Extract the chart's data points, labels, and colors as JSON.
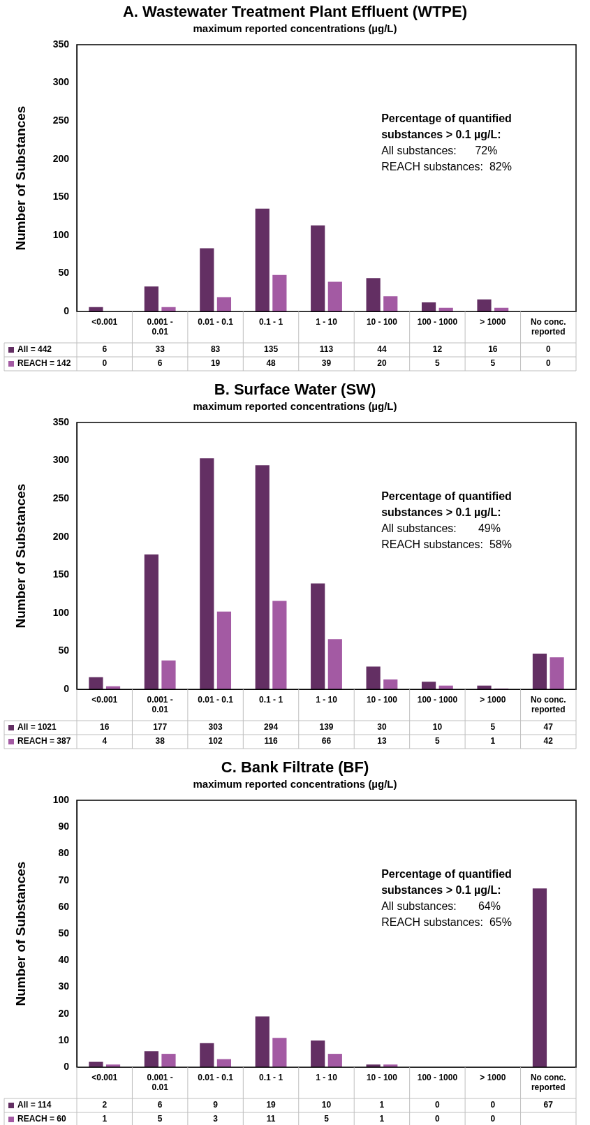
{
  "chart_data": [
    {
      "type": "bar",
      "title": "A. Wastewater Treatment Plant Effluent (WTPE)",
      "subtitle": "maximum reported concentrations (µg/L)",
      "ylabel": "Number of Substances",
      "categories": [
        "<0.001",
        "0.001 - 0.01",
        "0.01 - 0.1",
        "0.1 - 1",
        "1 - 10",
        "10 - 100",
        "100 - 1000",
        "> 1000",
        "No conc. reported"
      ],
      "series": [
        {
          "name": "All = 442",
          "color": "#632f63",
          "values": [
            6,
            33,
            83,
            135,
            113,
            44,
            12,
            16,
            0
          ]
        },
        {
          "name": "REACH = 142",
          "color": "#a35aa3",
          "values": [
            0,
            6,
            19,
            48,
            39,
            20,
            5,
            5,
            0
          ]
        }
      ],
      "ylim": [
        0,
        350
      ],
      "yticks": [
        0,
        50,
        100,
        150,
        200,
        250,
        300,
        350
      ],
      "grid": false,
      "legend": "bottom",
      "data_labels": true,
      "annotations": [
        "Percentage of quantified substances > 0.1 µg/L:",
        "All substances:      72%",
        "REACH substances:  82%"
      ]
    },
    {
      "type": "bar",
      "title": "B. Surface Water (SW)",
      "subtitle": "maximum reported concentrations (µg/L)",
      "ylabel": "Number of Substances",
      "categories": [
        "<0.001",
        "0.001 - 0.01",
        "0.01 - 0.1",
        "0.1 - 1",
        "1 - 10",
        "10 - 100",
        "100 - 1000",
        "> 1000",
        "No conc. reported"
      ],
      "series": [
        {
          "name": "All = 1021",
          "color": "#632f63",
          "values": [
            16,
            177,
            303,
            294,
            139,
            30,
            10,
            5,
            47
          ]
        },
        {
          "name": "REACH = 387",
          "color": "#a35aa3",
          "values": [
            4,
            38,
            102,
            116,
            66,
            13,
            5,
            1,
            42
          ]
        }
      ],
      "ylim": [
        0,
        350
      ],
      "yticks": [
        0,
        50,
        100,
        150,
        200,
        250,
        300,
        350
      ],
      "grid": false,
      "legend": "bottom",
      "data_labels": true,
      "annotations": [
        "Percentage of quantified substances > 0.1 µg/L:",
        "All substances:       49%",
        "REACH substances:  58%"
      ]
    },
    {
      "type": "bar",
      "title": "C.  Bank Filtrate (BF)",
      "subtitle": "maximum reported concentrations (µg/L)",
      "ylabel": "Number of Substances",
      "categories": [
        "<0.001",
        "0.001 - 0.01",
        "0.01 - 0.1",
        "0.1 - 1",
        "1 - 10",
        "10 - 100",
        "100 - 1000",
        "> 1000",
        "No conc. reported"
      ],
      "series": [
        {
          "name": "All = 114",
          "color": "#632f63",
          "values": [
            2,
            6,
            9,
            19,
            10,
            1,
            0,
            0,
            67
          ]
        },
        {
          "name": "REACH = 60",
          "color": "#a35aa3",
          "values": [
            1,
            5,
            3,
            11,
            5,
            1,
            0,
            0,
            null
          ]
        }
      ],
      "ylim": [
        0,
        100
      ],
      "yticks": [
        0,
        10,
        20,
        30,
        40,
        50,
        60,
        70,
        80,
        90,
        100
      ],
      "grid": false,
      "legend": "bottom",
      "data_labels": true,
      "annotations": [
        "Percentage of quantified substances > 0.1 µg/L:",
        "All substances:       64%",
        "REACH substances:  65%"
      ]
    }
  ]
}
